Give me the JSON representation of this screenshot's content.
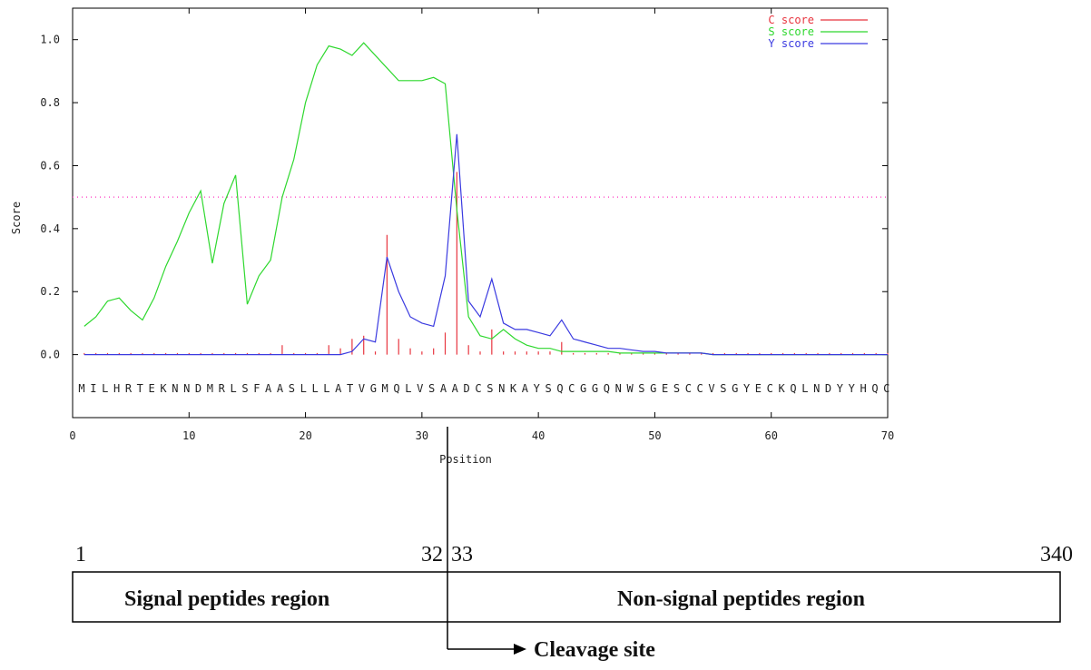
{
  "chart_data": {
    "type": "signalp",
    "xlabel": "Position",
    "ylabel": "Score",
    "sequence": "MILHRTEKNNDMRLSFAASLLLATVGMQLVSAADCSNKAYSQCGGQNWSGESCCVSGYECKQLNDYYHQC",
    "x": [
      1,
      2,
      3,
      4,
      5,
      6,
      7,
      8,
      9,
      10,
      11,
      12,
      13,
      14,
      15,
      16,
      17,
      18,
      19,
      20,
      21,
      22,
      23,
      24,
      25,
      26,
      27,
      28,
      29,
      30,
      31,
      32,
      33,
      34,
      35,
      36,
      37,
      38,
      39,
      40,
      41,
      42,
      43,
      44,
      45,
      46,
      47,
      48,
      49,
      50,
      51,
      52,
      53,
      54,
      55,
      56,
      57,
      58,
      59,
      60,
      61,
      62,
      63,
      64,
      65,
      66,
      67,
      68,
      69,
      70
    ],
    "series": [
      {
        "name": "C score",
        "color": "#e8353f",
        "style": "impulse",
        "values": [
          0.005,
          0.005,
          0.005,
          0.005,
          0.005,
          0.005,
          0.005,
          0.005,
          0.005,
          0.005,
          0.005,
          0.005,
          0.005,
          0.005,
          0.005,
          0.005,
          0.005,
          0.03,
          0.005,
          0.005,
          0.005,
          0.03,
          0.02,
          0.05,
          0.06,
          0.01,
          0.38,
          0.05,
          0.02,
          0.01,
          0.02,
          0.07,
          0.58,
          0.03,
          0.01,
          0.08,
          0.01,
          0.01,
          0.01,
          0.01,
          0.01,
          0.04,
          0.005,
          0.005,
          0.005,
          0.005,
          0.005,
          0.005,
          0.005,
          0.005,
          0.005,
          0.005,
          0.005,
          0.005,
          0.005,
          0.005,
          0.005,
          0.005,
          0.005,
          0.005,
          0.005,
          0.005,
          0.005,
          0.005,
          0.005,
          0.005,
          0.005,
          0.005,
          0.005,
          0.005
        ]
      },
      {
        "name": "S score",
        "color": "#2ed82e",
        "style": "line",
        "values": [
          0.09,
          0.12,
          0.17,
          0.18,
          0.14,
          0.11,
          0.18,
          0.28,
          0.36,
          0.45,
          0.52,
          0.29,
          0.48,
          0.57,
          0.16,
          0.25,
          0.3,
          0.5,
          0.62,
          0.8,
          0.92,
          0.98,
          0.97,
          0.95,
          0.99,
          0.95,
          0.91,
          0.87,
          0.87,
          0.87,
          0.88,
          0.86,
          0.46,
          0.12,
          0.06,
          0.05,
          0.08,
          0.05,
          0.03,
          0.02,
          0.02,
          0.01,
          0.01,
          0.01,
          0.01,
          0.01,
          0.005,
          0.005,
          0.005,
          0.005,
          0.005,
          0.005,
          0.005,
          0.005,
          0,
          0,
          0,
          0,
          0,
          0,
          0,
          0,
          0,
          0,
          0,
          0,
          0,
          0,
          0,
          0
        ]
      },
      {
        "name": "Y score",
        "color": "#3a3ae0",
        "style": "line",
        "values": [
          0,
          0,
          0,
          0,
          0,
          0,
          0,
          0,
          0,
          0,
          0,
          0,
          0,
          0,
          0,
          0,
          0,
          0,
          0,
          0,
          0,
          0,
          0,
          0.01,
          0.05,
          0.04,
          0.31,
          0.2,
          0.12,
          0.1,
          0.09,
          0.25,
          0.7,
          0.17,
          0.12,
          0.24,
          0.1,
          0.08,
          0.08,
          0.07,
          0.06,
          0.11,
          0.05,
          0.04,
          0.03,
          0.02,
          0.02,
          0.015,
          0.01,
          0.01,
          0.005,
          0.005,
          0.005,
          0.005,
          0,
          0,
          0,
          0,
          0,
          0,
          0,
          0,
          0,
          0,
          0,
          0,
          0,
          0,
          0,
          0
        ]
      }
    ],
    "threshold": 0.5,
    "threshold_color": "#ff55cc",
    "xlim": [
      0,
      70
    ],
    "xticks": [
      0,
      10,
      20,
      30,
      40,
      50,
      60,
      70
    ],
    "ylim": [
      -0.2,
      1.1
    ],
    "yticks": [
      {
        "value": 0,
        "label": "0.0"
      },
      0.2,
      0.4,
      0.6,
      0.8,
      {
        "value": 1,
        "label": "1.0"
      }
    ],
    "legend": "top-right"
  },
  "diagram": {
    "start": 1,
    "left_end": 32,
    "right_start": 33,
    "end": 340,
    "left_region": "Signal peptides region",
    "right_region": "Non-signal peptides region",
    "arrow_label": "Cleavage site"
  }
}
